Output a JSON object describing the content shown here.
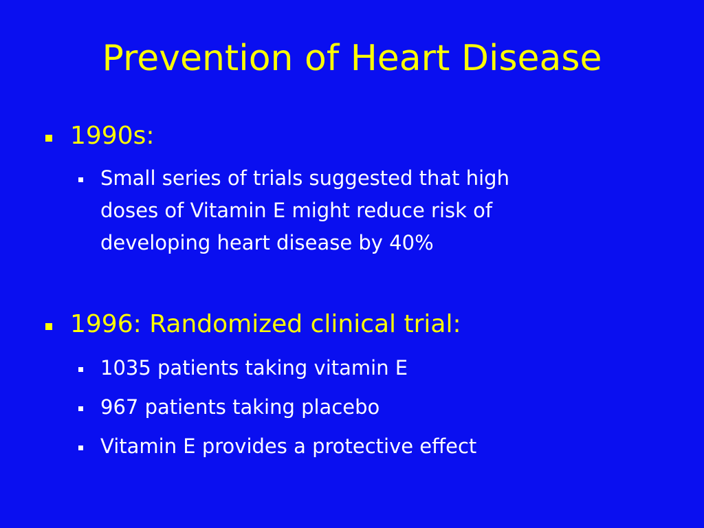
{
  "slide": {
    "title": "Prevention of Heart Disease",
    "bullets": [
      {
        "text": "1990s:",
        "sub": [
          {
            "lines": [
              "Small series of trials suggested that high",
              "doses of Vitamin E might reduce risk of",
              "developing heart disease by 40%"
            ]
          }
        ]
      },
      {
        "text": "1996: Randomized clinical trial:",
        "sub": [
          {
            "lines": [
              "1035 patients taking vitamin E"
            ]
          },
          {
            "lines": [
              "967 patients taking placebo"
            ]
          },
          {
            "lines": [
              "Vitamin E provides a protective effect"
            ]
          }
        ]
      }
    ]
  },
  "colors": {
    "background": "#0a0ff0",
    "title": "#ffff00",
    "level1_text": "#ffff00",
    "level2_text": "#ffffff"
  }
}
